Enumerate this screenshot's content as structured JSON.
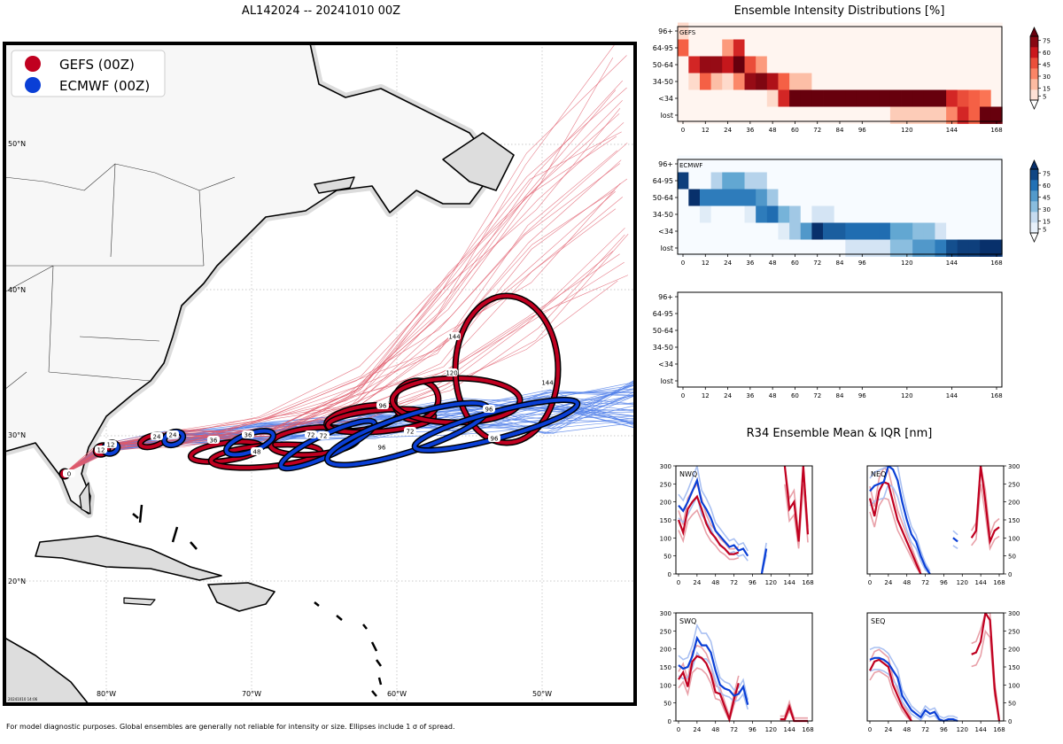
{
  "map": {
    "title": "AL142024 -- 20241010 00Z",
    "legend": [
      {
        "label": "GEFS (00Z)",
        "color": "#c00020"
      },
      {
        "label": "ECMWF (00Z)",
        "color": "#0a3fd6"
      }
    ],
    "lat_labels": [
      "50°N",
      "40°N",
      "30°N",
      "20°N"
    ],
    "lon_labels": [
      "80°W",
      "70°W",
      "60°W",
      "50°W"
    ],
    "stamp": "20241010 14:06",
    "gefs_hours": [
      "0",
      "12",
      "24",
      "36",
      "48",
      "72",
      "72",
      "96",
      "96",
      "120",
      "144",
      "144"
    ],
    "ecmwf_hours": [
      "12",
      "24",
      "36",
      "72",
      "96",
      "96"
    ]
  },
  "footer": "For model diagnostic purposes. Global ensembles are generally not reliable for intensity or size. Ellipses include 1 σ of spread.",
  "colors": {
    "gefs": "#c00020",
    "ecmwf": "#0a3fd6",
    "gefs_light": "#e8a0a8",
    "ecmwf_light": "#a9c0f2"
  },
  "chart_data": [
    {
      "type": "heatmap",
      "title": "Ensemble Intensity Distributions [%]",
      "panel": "GEFS",
      "y_categories": [
        "96+",
        "64-95",
        "50-64",
        "34-50",
        "<34",
        "lost"
      ],
      "x_ticks": [
        0,
        12,
        24,
        36,
        48,
        60,
        72,
        84,
        96,
        120,
        144,
        168
      ],
      "colorbar_ticks": [
        5,
        15,
        30,
        45,
        60,
        75
      ],
      "hours": [
        0,
        6,
        12,
        18,
        24,
        30,
        36,
        42,
        48,
        54,
        60,
        66,
        72,
        78,
        84,
        90,
        96,
        102,
        108,
        114,
        120,
        126,
        132,
        138,
        144,
        150,
        156,
        162,
        168
      ],
      "values": {
        "96+": [
          10,
          0,
          0,
          0,
          0,
          0,
          0,
          0,
          0,
          0,
          0,
          0,
          0,
          0,
          0,
          0,
          0,
          0,
          0,
          0,
          0,
          0,
          0,
          0,
          0,
          0,
          0,
          0,
          0
        ],
        "64-95": [
          45,
          0,
          0,
          0,
          30,
          60,
          0,
          0,
          0,
          0,
          0,
          0,
          0,
          0,
          0,
          0,
          0,
          0,
          0,
          0,
          0,
          0,
          0,
          0,
          0,
          0,
          0,
          0,
          0
        ],
        "50-64": [
          0,
          60,
          75,
          75,
          65,
          85,
          50,
          30,
          0,
          0,
          0,
          0,
          0,
          0,
          0,
          0,
          0,
          0,
          0,
          0,
          0,
          0,
          0,
          0,
          0,
          0,
          0,
          0,
          0
        ],
        "34-50": [
          0,
          10,
          45,
          20,
          10,
          35,
          75,
          80,
          70,
          45,
          20,
          20,
          0,
          0,
          0,
          0,
          0,
          0,
          0,
          0,
          0,
          0,
          0,
          0,
          0,
          0,
          0,
          0,
          0
        ],
        "<34": [
          0,
          0,
          0,
          0,
          0,
          0,
          0,
          0,
          10,
          60,
          85,
          85,
          85,
          85,
          85,
          85,
          85,
          85,
          85,
          85,
          85,
          85,
          85,
          85,
          60,
          50,
          45,
          40,
          0
        ],
        "lost": [
          0,
          0,
          0,
          0,
          0,
          0,
          0,
          0,
          0,
          0,
          0,
          0,
          0,
          0,
          0,
          0,
          0,
          0,
          0,
          15,
          15,
          15,
          15,
          15,
          35,
          60,
          45,
          85,
          85
        ]
      }
    },
    {
      "type": "heatmap",
      "panel": "ECMWF",
      "y_categories": [
        "96+",
        "64-95",
        "50-64",
        "34-50",
        "<34",
        "lost"
      ],
      "x_ticks": [
        0,
        12,
        24,
        36,
        48,
        60,
        72,
        84,
        96,
        120,
        144,
        168
      ],
      "colorbar_ticks": [
        5,
        15,
        30,
        45,
        60,
        75
      ],
      "hours": [
        0,
        6,
        12,
        18,
        24,
        30,
        36,
        42,
        48,
        54,
        60,
        66,
        72,
        78,
        84,
        90,
        96,
        102,
        108,
        114,
        120,
        126,
        132,
        138,
        144,
        150,
        156,
        162,
        168
      ],
      "values": {
        "96+": [
          0,
          0,
          0,
          0,
          0,
          0,
          0,
          0,
          0,
          0,
          0,
          0,
          0,
          0,
          0,
          0,
          0,
          0,
          0,
          0,
          0,
          0,
          0,
          0,
          0,
          0,
          0,
          0,
          0
        ],
        "64-95": [
          80,
          0,
          0,
          25,
          45,
          45,
          25,
          25,
          0,
          0,
          0,
          0,
          0,
          0,
          0,
          0,
          0,
          0,
          0,
          0,
          0,
          0,
          0,
          0,
          0,
          0,
          0,
          0,
          0
        ],
        "50-64": [
          0,
          85,
          60,
          60,
          60,
          60,
          60,
          50,
          30,
          0,
          0,
          0,
          0,
          0,
          0,
          0,
          0,
          0,
          0,
          0,
          0,
          0,
          0,
          0,
          0,
          0,
          0,
          0,
          0
        ],
        "34-50": [
          0,
          0,
          10,
          0,
          0,
          0,
          10,
          60,
          65,
          40,
          30,
          0,
          15,
          15,
          0,
          0,
          0,
          0,
          0,
          0,
          0,
          0,
          0,
          0,
          0,
          0,
          0,
          0,
          0
        ],
        "<34": [
          0,
          0,
          0,
          0,
          0,
          0,
          0,
          0,
          0,
          10,
          30,
          50,
          85,
          70,
          70,
          65,
          65,
          65,
          65,
          45,
          45,
          35,
          35,
          15,
          0,
          0,
          0,
          0,
          0
        ],
        "lost": [
          0,
          0,
          0,
          0,
          0,
          0,
          0,
          0,
          0,
          0,
          0,
          0,
          0,
          0,
          0,
          15,
          15,
          15,
          15,
          35,
          35,
          50,
          50,
          60,
          75,
          80,
          80,
          85,
          85
        ]
      }
    },
    {
      "type": "heatmap",
      "panel": "",
      "y_categories": [
        "96+",
        "64-95",
        "50-64",
        "34-50",
        "<34",
        "lost"
      ],
      "x_ticks": [
        0,
        12,
        24,
        36,
        48,
        60,
        72,
        84,
        96,
        120,
        144,
        168
      ],
      "values": {}
    },
    {
      "type": "line",
      "title": "R34 Ensemble Mean & IQR [nm]",
      "panels": [
        {
          "name": "NWQ",
          "ylim": [
            0,
            300
          ],
          "yticks": [
            0,
            50,
            100,
            150,
            200,
            250,
            300
          ],
          "xticks": [
            0,
            24,
            48,
            72,
            96,
            120,
            144,
            168
          ],
          "series": [
            {
              "name": "GEFS mean",
              "color": "#c00020",
              "x": [
                0,
                6,
                12,
                18,
                24,
                30,
                36,
                42,
                48,
                54,
                60,
                66,
                72,
                78
              ],
              "y": [
                150,
                115,
                180,
                200,
                215,
                180,
                140,
                115,
                100,
                80,
                70,
                55,
                55,
                60
              ]
            },
            {
              "name": "GEFS mean",
              "color": "#c00020",
              "x": [
                138,
                144,
                150,
                156,
                162,
                168
              ],
              "y": [
                300,
                180,
                200,
                90,
                300,
                110
              ]
            },
            {
              "name": "ECMWF mean",
              "color": "#0a3fd6",
              "x": [
                0,
                6,
                12,
                18,
                24,
                30,
                36,
                42,
                48,
                54,
                60,
                66,
                72,
                78,
                84,
                90
              ],
              "y": [
                190,
                175,
                200,
                230,
                260,
                200,
                180,
                155,
                120,
                105,
                90,
                75,
                80,
                65,
                70,
                50
              ]
            },
            {
              "name": "ECMWF mean",
              "color": "#0a3fd6",
              "x": [
                108,
                114
              ],
              "y": [
                0,
                70
              ]
            }
          ]
        },
        {
          "name": "NEQ",
          "ylim": [
            0,
            300
          ],
          "yticks": [
            0,
            50,
            100,
            150,
            200,
            250,
            300
          ],
          "xticks": [
            0,
            24,
            48,
            72,
            96,
            120,
            144,
            168
          ],
          "series": [
            {
              "name": "GEFS mean",
              "color": "#c00020",
              "x": [
                0,
                6,
                12,
                18,
                24,
                30,
                36,
                42,
                48,
                54,
                60,
                66
              ],
              "y": [
                210,
                160,
                230,
                255,
                250,
                200,
                150,
                120,
                90,
                60,
                30,
                0
              ]
            },
            {
              "name": "GEFS mean",
              "color": "#c00020",
              "x": [
                132,
                138,
                144,
                150,
                156,
                162,
                168
              ],
              "y": [
                100,
                120,
                300,
                200,
                90,
                120,
                130
              ]
            },
            {
              "name": "ECMWF mean",
              "color": "#0a3fd6",
              "x": [
                0,
                6,
                12,
                18,
                24,
                30,
                36,
                42,
                48,
                54,
                60,
                66,
                72,
                78
              ],
              "y": [
                230,
                245,
                250,
                255,
                300,
                290,
                260,
                200,
                150,
                110,
                90,
                50,
                20,
                0
              ]
            },
            {
              "name": "ECMWF mean",
              "color": "#0a3fd6",
              "x": [
                108,
                114
              ],
              "y": [
                100,
                90
              ]
            }
          ]
        },
        {
          "name": "SWQ",
          "ylim": [
            0,
            300
          ],
          "yticks": [
            0,
            50,
            100,
            150,
            200,
            250,
            300
          ],
          "xticks": [
            0,
            24,
            48,
            72,
            96,
            120,
            144,
            168
          ],
          "series": [
            {
              "name": "GEFS mean",
              "color": "#c00020",
              "x": [
                0,
                6,
                12,
                18,
                24,
                30,
                36,
                42,
                48,
                54,
                60,
                66,
                72,
                78
              ],
              "y": [
                115,
                135,
                95,
                165,
                180,
                175,
                160,
                130,
                80,
                75,
                40,
                5,
                60,
                105
              ]
            },
            {
              "name": "GEFS mean",
              "color": "#c00020",
              "x": [
                132,
                138,
                144,
                150,
                156,
                162,
                168
              ],
              "y": [
                5,
                5,
                40,
                0,
                0,
                0,
                0
              ]
            },
            {
              "name": "ECMWF mean",
              "color": "#0a3fd6",
              "x": [
                0,
                6,
                12,
                18,
                24,
                30,
                36,
                42,
                48,
                54,
                60,
                66,
                72,
                78,
                84,
                90
              ],
              "y": [
                155,
                145,
                150,
                180,
                230,
                210,
                210,
                190,
                140,
                100,
                90,
                85,
                70,
                75,
                95,
                45
              ]
            }
          ]
        },
        {
          "name": "SEQ",
          "ylim": [
            0,
            300
          ],
          "yticks": [
            0,
            50,
            100,
            150,
            200,
            250,
            300
          ],
          "xticks": [
            0,
            24,
            48,
            72,
            96,
            120,
            144,
            168
          ],
          "series": [
            {
              "name": "GEFS mean",
              "color": "#c00020",
              "x": [
                0,
                6,
                12,
                18,
                24,
                30,
                36,
                42,
                48,
                54
              ],
              "y": [
                140,
                165,
                170,
                160,
                150,
                100,
                70,
                40,
                20,
                0
              ]
            },
            {
              "name": "GEFS mean",
              "color": "#c00020",
              "x": [
                132,
                138,
                144,
                150,
                156,
                162,
                168
              ],
              "y": [
                185,
                190,
                220,
                300,
                280,
                90,
                0
              ]
            },
            {
              "name": "ECMWF mean",
              "color": "#0a3fd6",
              "x": [
                0,
                6,
                12,
                18,
                24,
                30,
                36,
                42,
                48,
                54,
                60,
                66,
                72,
                78,
                84,
                90,
                96,
                102,
                108,
                114
              ],
              "y": [
                170,
                175,
                175,
                170,
                160,
                140,
                120,
                70,
                50,
                30,
                20,
                10,
                30,
                20,
                25,
                5,
                0,
                5,
                5,
                0
              ]
            }
          ]
        }
      ]
    }
  ]
}
